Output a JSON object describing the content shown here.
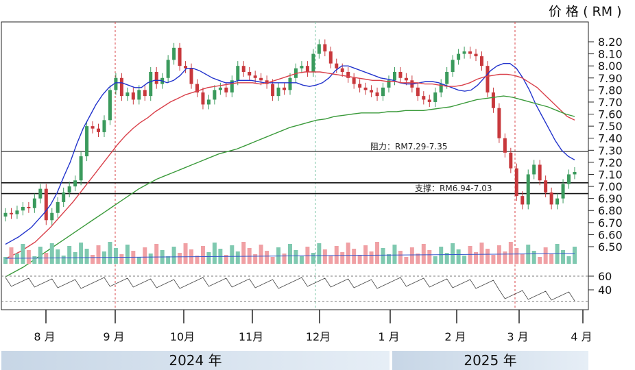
{
  "unit_label": "价 格 ( RM )",
  "chart_data": {
    "type": "candlestick",
    "ylim": [
      6.32,
      8.32
    ],
    "y_ticks": [
      "8.20",
      "8.10",
      "8.00",
      "7.90",
      "7.80",
      "7.70",
      "7.60",
      "7.50",
      "7.40",
      "7.30",
      "7.20",
      "7.10",
      "7.00",
      "6.90",
      "6.80",
      "6.70",
      "6.60",
      "6.50"
    ],
    "x_ticks": [
      "8 月",
      "9 月",
      "10月",
      "11月",
      "12月",
      "1 月",
      "2 月",
      "3 月",
      "4 月"
    ],
    "years": [
      "2024 年",
      "2025 年"
    ],
    "resistance": {
      "label": "阻力：RM7.29-7.35",
      "value": 7.29
    },
    "support": {
      "label": "支撑：RM6.94-7.03",
      "values": [
        7.03,
        6.94
      ]
    },
    "rsi_ticks": [
      "60",
      "40"
    ],
    "series": [
      {
        "name": "close",
        "values": [
          6.78,
          6.77,
          6.8,
          6.83,
          6.82,
          6.9,
          6.98,
          6.72,
          6.78,
          6.87,
          6.95,
          7.0,
          7.05,
          7.25,
          7.5,
          7.48,
          7.45,
          7.55,
          7.8,
          7.9,
          7.75,
          7.78,
          7.72,
          7.8,
          7.75,
          7.95,
          7.85,
          7.9,
          8.05,
          8.15,
          8.0,
          7.98,
          7.85,
          7.78,
          7.68,
          7.72,
          7.8,
          7.82,
          7.78,
          7.88,
          8.0,
          7.95,
          7.92,
          7.9,
          7.88,
          7.85,
          7.75,
          7.82,
          7.8,
          7.9,
          7.98,
          8.0,
          7.95,
          8.1,
          8.18,
          8.12,
          8.02,
          7.98,
          7.95,
          7.9,
          7.85,
          7.82,
          7.8,
          7.78,
          7.75,
          7.82,
          7.88,
          7.95,
          7.9,
          7.88,
          7.82,
          7.75,
          7.72,
          7.7,
          7.78,
          7.85,
          7.95,
          8.05,
          8.1,
          8.12,
          8.1,
          8.08,
          8.0,
          7.78,
          7.65,
          7.4,
          7.28,
          7.15,
          6.92,
          6.85,
          7.1,
          7.18,
          7.05,
          6.95,
          6.85,
          6.9,
          7.02,
          7.1,
          7.12
        ]
      },
      {
        "name": "ma_fast",
        "values": [
          6.52,
          6.55,
          6.58,
          6.62,
          6.66,
          6.72,
          6.78,
          6.85,
          6.95,
          7.08,
          7.2,
          7.35,
          7.48,
          7.58,
          7.68,
          7.76,
          7.82,
          7.86,
          7.86,
          7.84,
          7.82,
          7.82,
          7.86,
          7.88,
          7.88,
          7.86,
          7.88,
          7.92,
          7.98,
          7.98,
          7.96,
          7.93,
          7.9,
          7.88,
          7.86,
          7.86,
          7.88,
          7.88,
          7.88,
          7.87,
          7.86,
          7.86,
          7.86,
          7.86,
          7.86,
          7.86,
          7.84,
          7.83,
          7.84,
          7.86,
          7.9,
          7.96,
          8.0,
          8.0,
          7.98,
          7.96,
          7.94,
          7.92,
          7.9,
          7.89,
          7.88,
          7.86,
          7.85,
          7.85,
          7.86,
          7.87,
          7.87,
          7.86,
          7.84,
          7.82,
          7.8,
          7.79,
          7.8,
          7.84,
          7.9,
          7.96,
          8.0,
          8.02,
          8.02,
          7.98,
          7.9,
          7.8,
          7.68,
          7.58,
          7.48,
          7.38,
          7.3,
          7.25,
          7.22
        ]
      },
      {
        "name": "ma_mid",
        "values": [
          6.4,
          6.43,
          6.46,
          6.5,
          6.54,
          6.6,
          6.66,
          6.73,
          6.8,
          6.87,
          6.95,
          7.03,
          7.11,
          7.19,
          7.27,
          7.35,
          7.42,
          7.48,
          7.53,
          7.57,
          7.62,
          7.66,
          7.7,
          7.73,
          7.76,
          7.78,
          7.8,
          7.82,
          7.83,
          7.84,
          7.85,
          7.86,
          7.86,
          7.86,
          7.85,
          7.86,
          7.88,
          7.9,
          7.92,
          7.94,
          7.95,
          7.95,
          7.95,
          7.94,
          7.93,
          7.92,
          7.91,
          7.9,
          7.89,
          7.88,
          7.88,
          7.87,
          7.87,
          7.86,
          7.86,
          7.86,
          7.85,
          7.85,
          7.84,
          7.83,
          7.83,
          7.84,
          7.86,
          7.89,
          7.91,
          7.92,
          7.93,
          7.93,
          7.92,
          7.9,
          7.86,
          7.82,
          7.76,
          7.7,
          7.64,
          7.58,
          7.55
        ]
      },
      {
        "name": "ma_slow",
        "values": [
          6.25,
          6.29,
          6.33,
          6.38,
          6.43,
          6.48,
          6.53,
          6.58,
          6.63,
          6.68,
          6.73,
          6.78,
          6.83,
          6.88,
          6.93,
          6.98,
          7.02,
          7.06,
          7.09,
          7.12,
          7.15,
          7.18,
          7.21,
          7.24,
          7.27,
          7.29,
          7.31,
          7.34,
          7.37,
          7.4,
          7.43,
          7.46,
          7.49,
          7.51,
          7.53,
          7.55,
          7.56,
          7.58,
          7.59,
          7.6,
          7.61,
          7.61,
          7.61,
          7.62,
          7.62,
          7.63,
          7.63,
          7.63,
          7.64,
          7.65,
          7.66,
          7.68,
          7.7,
          7.72,
          7.73,
          7.74,
          7.75,
          7.74,
          7.72,
          7.7,
          7.68,
          7.66,
          7.63,
          7.6,
          7.58
        ]
      }
    ]
  }
}
